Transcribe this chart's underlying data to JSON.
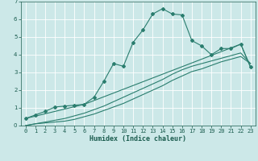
{
  "xlabel": "Humidex (Indice chaleur)",
  "ylabel": "",
  "background_color": "#cce8e8",
  "grid_color": "#ffffff",
  "line_color": "#2a7d6e",
  "xlim": [
    -0.5,
    23.5
  ],
  "ylim": [
    0,
    7
  ],
  "xticks": [
    0,
    1,
    2,
    3,
    4,
    5,
    6,
    7,
    8,
    9,
    10,
    11,
    12,
    13,
    14,
    15,
    16,
    17,
    18,
    19,
    20,
    21,
    22,
    23
  ],
  "yticks": [
    0,
    1,
    2,
    3,
    4,
    5,
    6,
    7
  ],
  "series1_x": [
    0,
    1,
    2,
    3,
    4,
    5,
    6,
    7,
    8,
    9,
    10,
    11,
    12,
    13,
    14,
    15,
    16,
    17,
    18,
    19,
    20,
    21,
    22,
    23
  ],
  "series1_y": [
    0.4,
    0.6,
    0.8,
    1.05,
    1.1,
    1.15,
    1.2,
    1.6,
    2.5,
    3.5,
    3.35,
    4.7,
    5.4,
    6.3,
    6.6,
    6.3,
    6.25,
    4.8,
    4.5,
    4.0,
    4.35,
    4.35,
    4.6,
    3.3
  ],
  "series2_x": [
    0,
    1,
    2,
    3,
    4,
    5,
    6,
    7,
    8,
    9,
    10,
    11,
    12,
    13,
    14,
    15,
    16,
    17,
    18,
    19,
    20,
    21,
    22,
    23
  ],
  "series2_y": [
    0.0,
    0.1,
    0.15,
    0.2,
    0.25,
    0.35,
    0.5,
    0.65,
    0.85,
    1.05,
    1.25,
    1.5,
    1.75,
    2.0,
    2.25,
    2.55,
    2.8,
    3.05,
    3.2,
    3.4,
    3.6,
    3.75,
    3.9,
    3.5
  ],
  "series3_x": [
    0,
    1,
    2,
    3,
    4,
    5,
    6,
    7,
    8,
    9,
    10,
    11,
    12,
    13,
    14,
    15,
    16,
    17,
    18,
    19,
    20,
    21,
    22,
    23
  ],
  "series3_y": [
    0.0,
    0.1,
    0.2,
    0.3,
    0.4,
    0.55,
    0.7,
    0.9,
    1.1,
    1.35,
    1.6,
    1.85,
    2.1,
    2.35,
    2.6,
    2.9,
    3.15,
    3.35,
    3.5,
    3.65,
    3.8,
    3.95,
    4.1,
    3.5
  ],
  "series4_x": [
    0,
    6,
    22,
    23
  ],
  "series4_y": [
    0.4,
    1.2,
    4.6,
    3.3
  ],
  "xlabel_fontsize": 6.0,
  "tick_fontsize": 5.0
}
